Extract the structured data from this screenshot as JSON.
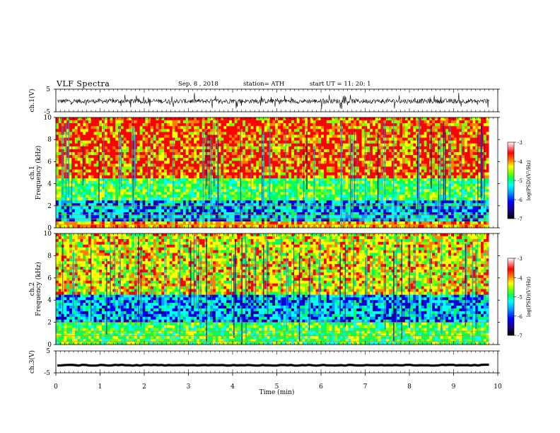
{
  "header": {
    "title": "VLF  Spectra",
    "date": "Sep. 8  , 2018",
    "station": "station= ATH",
    "start": "start  UT  =    11: 20: 1"
  },
  "chart_data": [
    {
      "type": "line",
      "panel": "ch1-waveform",
      "ylabel": "ch.1(V)",
      "ytick_labels": [
        "5",
        "-5"
      ],
      "ylim": [
        -5,
        5
      ],
      "xlim": [
        0,
        10
      ],
      "description_value_range": [
        -1.5,
        0.8
      ],
      "series": [
        {
          "values_mean": -0.3,
          "values_spread": 1.0
        }
      ]
    },
    {
      "type": "heatmap",
      "panel": "ch1-spectrogram",
      "ylabel_top": "ch.1",
      "ylabel": "Frequency  (kHz)",
      "yticks": [
        0,
        2,
        4,
        6,
        8,
        10
      ],
      "ylim": [
        0,
        10
      ],
      "xlim": [
        0,
        10
      ],
      "x_data_end": 9.8,
      "colorbar": {
        "label": "log(PSD)(V²/Hz)",
        "ticks": [
          -3,
          -4,
          -5,
          -6,
          -7
        ],
        "range": [
          -7,
          -3
        ]
      },
      "bands_kHz": [
        {
          "from": 0,
          "to": 0.6,
          "level": "orange-yellow"
        },
        {
          "from": 0.6,
          "to": 2.5,
          "level": "cyan-blue"
        },
        {
          "from": 2.5,
          "to": 4.5,
          "level": "green"
        },
        {
          "from": 4.5,
          "to": 10,
          "level": "red-yellow"
        }
      ]
    },
    {
      "type": "heatmap",
      "panel": "ch2-spectrogram",
      "ylabel_top": "ch.2",
      "ylabel": "Frequency  (kHz)",
      "yticks": [
        0,
        2,
        4,
        6,
        8,
        10
      ],
      "ylim": [
        0,
        10
      ],
      "xlim": [
        0,
        10
      ],
      "x_data_end": 9.8,
      "colorbar": {
        "label": "log(PSD)(V²/Hz)",
        "ticks": [
          -3,
          -4,
          -5,
          -6,
          -7
        ],
        "range": [
          -7,
          -3
        ]
      },
      "bands_kHz": [
        {
          "from": 0,
          "to": 2,
          "level": "green-yellow"
        },
        {
          "from": 2,
          "to": 4.5,
          "level": "cyan-blue"
        },
        {
          "from": 4.5,
          "to": 10,
          "level": "yellow-red"
        }
      ]
    },
    {
      "type": "line",
      "panel": "ch3-waveform",
      "ylabel": "ch.3(V)",
      "ytick_labels": [
        "5",
        "-5"
      ],
      "ylim": [
        -5,
        5
      ],
      "xlim": [
        0,
        10
      ],
      "series": [
        {
          "values_mean": -1.5,
          "values_spread": 0.2
        }
      ]
    }
  ],
  "xaxis": {
    "label": "Time  (min)",
    "ticks": [
      "0",
      "1",
      "2",
      "3",
      "4",
      "5",
      "6",
      "7",
      "8",
      "9",
      "10"
    ],
    "range": [
      0,
      10
    ]
  },
  "colors": {
    "colormap": [
      "#000000",
      "#1a0090",
      "#0000ff",
      "#00a0ff",
      "#00ffff",
      "#00ff60",
      "#80ff00",
      "#ffff00",
      "#ff8000",
      "#ff0000",
      "#ffffff"
    ]
  }
}
